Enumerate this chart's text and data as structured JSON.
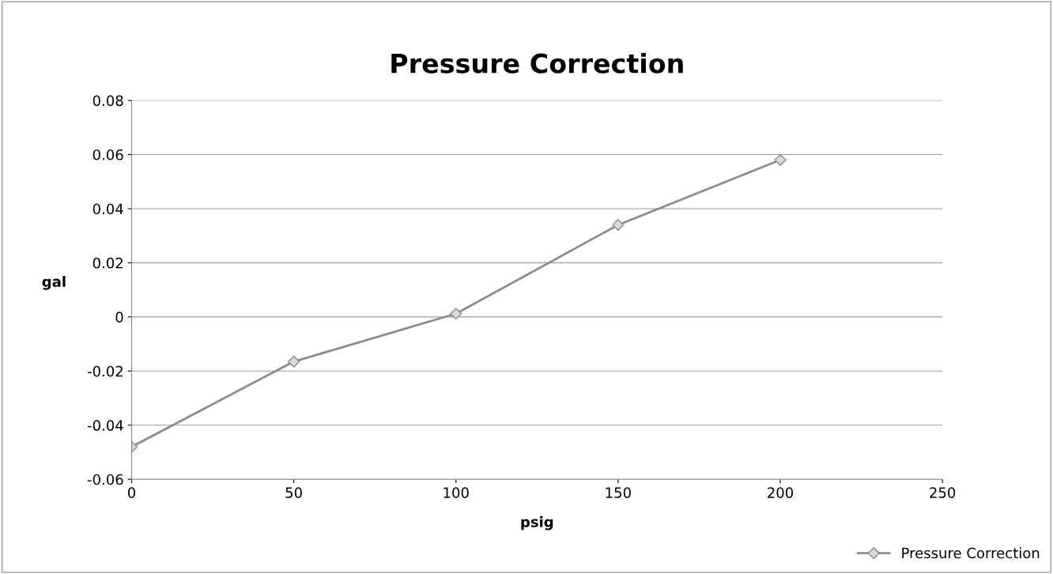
{
  "chart_data": {
    "type": "line",
    "title": "Pressure Correction",
    "xlabel": "psig",
    "ylabel": "gal",
    "x": [
      0,
      50,
      100,
      150,
      200
    ],
    "series": [
      {
        "name": "Pressure Correction",
        "color": "#8c8c8c",
        "values": [
          -0.048,
          -0.0165,
          0.0012,
          0.034,
          0.058
        ]
      }
    ],
    "xlim": [
      0,
      250
    ],
    "xticks": [
      0,
      50,
      100,
      150,
      200,
      250
    ],
    "ylim": [
      -0.06,
      0.08
    ],
    "yticks": [
      {
        "value": -0.06,
        "label": "-0.06"
      },
      {
        "value": -0.04,
        "label": "-0.04"
      },
      {
        "value": -0.02,
        "label": "-0.02"
      },
      0,
      0.02,
      0.04,
      0.06,
      0.08
    ],
    "grid": "y",
    "legend": "bottom right",
    "marker": "diamond",
    "line_style": "solid"
  }
}
